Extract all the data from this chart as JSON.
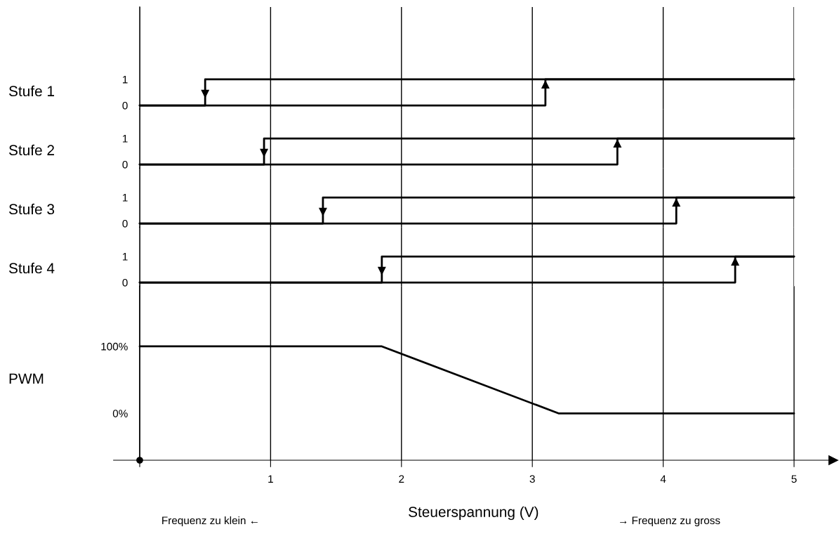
{
  "chart_data": [
    {
      "type": "line",
      "ylabel": "Stufe 1",
      "xlim": [
        0,
        5
      ],
      "xticks": [
        0,
        1,
        2,
        3,
        4,
        5
      ],
      "ylim": [
        -0.14,
        3.78
      ],
      "yticks": [
        1,
        0
      ],
      "grid": "x",
      "tick_labels": "y",
      "series": [
        {
          "color": "#000000",
          "x": [
            0,
            3.1,
            3.1,
            5
          ],
          "values": [
            0,
            0,
            1,
            1
          ]
        },
        {
          "color": "#000000",
          "x": [
            5,
            0.5,
            0.5,
            0
          ],
          "values": [
            1,
            1,
            0,
            0
          ]
        }
      ]
    },
    {
      "type": "line",
      "ylabel": "Stufe 2",
      "xlim": [
        0,
        5
      ],
      "xticks": [
        0,
        1,
        2,
        3,
        4,
        5
      ],
      "ylim": [
        -0.14,
        2.13
      ],
      "yticks": [
        1,
        0
      ],
      "grid": "x",
      "tick_labels": "y",
      "series": [
        {
          "color": "#000000",
          "x": [
            0,
            3.65,
            3.65,
            5
          ],
          "values": [
            0,
            0,
            1,
            1
          ]
        },
        {
          "color": "#000000",
          "x": [
            5,
            0.95,
            0.95,
            0
          ],
          "values": [
            1,
            1,
            0,
            0
          ]
        }
      ]
    },
    {
      "type": "line",
      "ylabel": "Stufe 3",
      "xlim": [
        0,
        5
      ],
      "xticks": [
        0,
        1,
        2,
        3,
        4,
        5
      ],
      "ylim": [
        -0.14,
        2.13
      ],
      "yticks": [
        1,
        0
      ],
      "grid": "x",
      "tick_labels": "y",
      "series": [
        {
          "color": "#000000",
          "x": [
            0,
            4.1,
            4.1,
            5
          ],
          "values": [
            0,
            0,
            1,
            1
          ]
        },
        {
          "color": "#000000",
          "x": [
            5,
            1.4,
            1.4,
            0
          ],
          "values": [
            1,
            1,
            0,
            0
          ]
        }
      ]
    },
    {
      "type": "line",
      "ylabel": "Stufe 4",
      "xlim": [
        0,
        5
      ],
      "xticks": [
        0,
        1,
        2,
        3,
        4,
        5
      ],
      "ylim": [
        -0.14,
        2.13
      ],
      "yticks": [
        1,
        0
      ],
      "grid": "x",
      "tick_labels": "y",
      "series": [
        {
          "color": "#000000",
          "x": [
            0,
            4.55,
            4.55,
            5
          ],
          "values": [
            0,
            0,
            1,
            1
          ]
        },
        {
          "color": "#000000",
          "x": [
            5,
            1.85,
            1.85,
            0
          ],
          "values": [
            1,
            1,
            0,
            0
          ]
        }
      ]
    },
    {
      "type": "line",
      "ylabel": "PWM",
      "xlabel": "Steuerspannung (V)",
      "xlim": [
        -0.2,
        5.3
      ],
      "xticks": [
        {
          "value": 0,
          "label": null
        },
        1,
        2,
        3,
        4,
        5
      ],
      "ylim": [
        -70,
        190
      ],
      "yticks": [
        {
          "value": 100,
          "label": "100%"
        },
        {
          "value": 0,
          "label": "0%"
        }
      ],
      "grid": "x",
      "series": [
        {
          "color": "#000000",
          "x": [
            0,
            1.85,
            3.2,
            5
          ],
          "values": [
            100,
            100,
            0,
            0
          ]
        }
      ],
      "annotations": [
        "Frequenz zu klein ←",
        "→ Frequenz zu gross"
      ]
    }
  ]
}
